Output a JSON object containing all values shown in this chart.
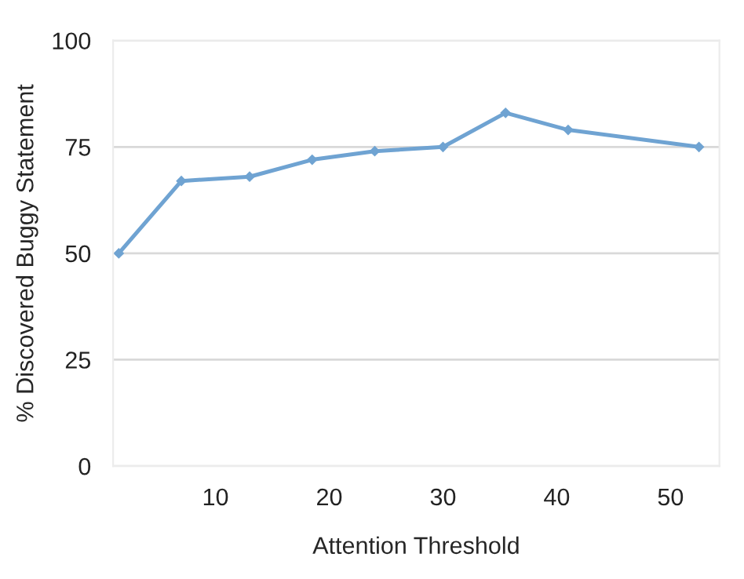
{
  "chart_data": {
    "type": "line",
    "xlabel": "Attention Threshold",
    "ylabel": "% Discovered Buggy Statement",
    "x": [
      1.5,
      7,
      13,
      18.5,
      24,
      30,
      35.5,
      41,
      52.5
    ],
    "series": [
      {
        "color": "#6fa3d2",
        "values": [
          50,
          67,
          68,
          72,
          74,
          75,
          83,
          79,
          75
        ]
      }
    ],
    "xlim": [
      1,
      54.3
    ],
    "xticks": [
      10,
      20,
      30,
      40,
      50
    ],
    "ylim": [
      0,
      100
    ],
    "yticks": [
      0,
      25,
      50,
      75,
      100
    ],
    "grid": "y",
    "marker": "diamond",
    "line_style": "solid",
    "legend": false
  }
}
